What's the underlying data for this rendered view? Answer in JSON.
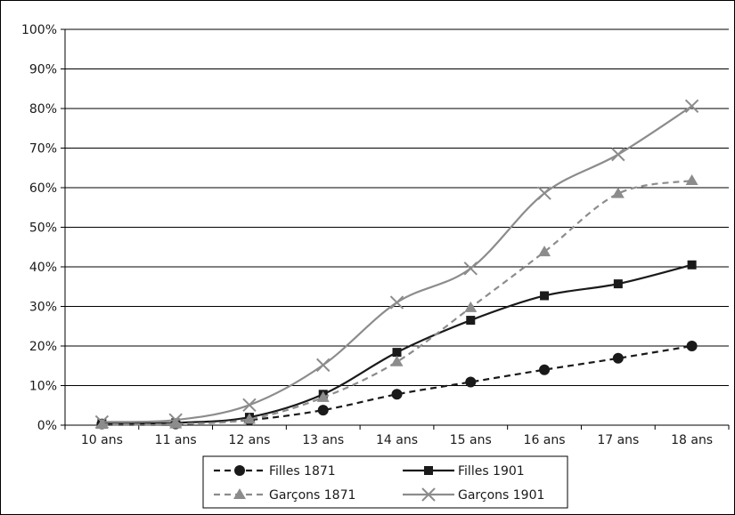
{
  "chart_data": {
    "type": "line",
    "categories": [
      "10 ans",
      "11 ans",
      "12 ans",
      "13 ans",
      "14 ans",
      "15 ans",
      "16 ans",
      "17 ans",
      "18 ans"
    ],
    "y_ticks": [
      "0%",
      "10%",
      "20%",
      "30%",
      "40%",
      "50%",
      "60%",
      "70%",
      "80%",
      "90%",
      "100%"
    ],
    "ylim": [
      0,
      100
    ],
    "grid": true,
    "legend_position": "bottom",
    "series": [
      {
        "name": "Filles 1871",
        "values": [
          0.3,
          0.3,
          1.3,
          3.8,
          7.8,
          10.9,
          14.0,
          16.9,
          20.0
        ],
        "color": "#1a1a1a",
        "dash": "dashed",
        "marker": "circle"
      },
      {
        "name": "Filles 1901",
        "values": [
          0.4,
          0.6,
          2.0,
          7.8,
          18.4,
          26.5,
          32.7,
          35.7,
          40.5
        ],
        "color": "#1a1a1a",
        "dash": "solid",
        "marker": "square"
      },
      {
        "name": "Garçons 1871",
        "values": [
          0.2,
          0.3,
          1.5,
          7.0,
          16.0,
          29.7,
          43.8,
          58.5,
          61.8
        ],
        "color": "#8c8c8c",
        "dash": "dashed",
        "marker": "triangle"
      },
      {
        "name": "Garçons 1901",
        "values": [
          0.8,
          1.3,
          5.1,
          15.2,
          31.0,
          39.6,
          58.6,
          68.4,
          80.6
        ],
        "color": "#8c8c8c",
        "dash": "solid",
        "marker": "x"
      }
    ]
  }
}
